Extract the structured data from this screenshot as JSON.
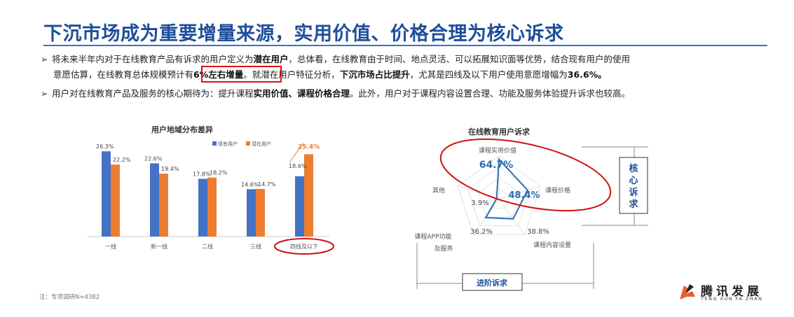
{
  "title": "下沉市场成为重要增量来源，实用价值、价格合理为核心诉求",
  "para1": {
    "arrow": "➢",
    "a1": "将未来半年内对于在线教育产品有诉求的用户定义为",
    "b1": "潜在用户",
    "a2": "，总体看，在线教育由于时间、地点灵活、可以拓展知识面等优势，结合现有用户的使用",
    "a3": "意愿估算，在线教育总体规模预计有",
    "b2": "6%左右增量",
    "a4": "。就潜在用户特征分析，",
    "b3": "下沉市场占比提升",
    "a5": "，尤其是四线及以下用户使用意愿增幅为",
    "b4": "36.6%。"
  },
  "para2": {
    "arrow": "➢",
    "a1": "用户对在线教育产品及服务的核心期待为：提升课程",
    "b1": "实用价值、课程价格合理",
    "a2": "。此外，用户对于课程内容设置合理、功能及服务体验提升诉求也较高。"
  },
  "chart_data": [
    {
      "type": "bar",
      "title": "用户地域分布差异",
      "categories": [
        "一线",
        "新一线",
        "二线",
        "三线",
        "四线及以下"
      ],
      "series": [
        {
          "name": "现有用户",
          "values": [
            26.3,
            22.6,
            17.8,
            14.6,
            18.6
          ],
          "labels": [
            "26.3%",
            "22.6%",
            "17.8%",
            "14.6%",
            "18.6%"
          ],
          "color": "#4472c4"
        },
        {
          "name": "潜在用户",
          "values": [
            22.2,
            19.4,
            18.2,
            14.7,
            25.4
          ],
          "labels": [
            "22.2%",
            "19.4%",
            "18.2%",
            "14.7%",
            "25.4%"
          ],
          "color": "#ed7d31"
        }
      ],
      "ylim": [
        0,
        27
      ],
      "legend": "top-right",
      "highlight_color": "#ed7d31"
    },
    {
      "type": "radar",
      "title": "在线教育用户诉求",
      "axes": [
        "课程实用价值",
        "课程价格",
        "课程内容设置",
        "课程APP功能及服务",
        "其他"
      ],
      "values": [
        64.7,
        48.4,
        38.8,
        36.2,
        3.9
      ],
      "labels": [
        "64.7%",
        "48.4%",
        "38.8%",
        "36.2%",
        "3.9%"
      ],
      "rmax": 70,
      "series_color": "#2e6db4",
      "group_right_label": "核心诉求",
      "group_bottom_label": "进阶诉求"
    }
  ],
  "note": "注：专项调研N=4382",
  "logo": {
    "name_cn": "腾讯发展",
    "name_en": "TENG XUN FA ZHAN",
    "mark_color": "#e8602c"
  },
  "accent_color": "#1f4e9b",
  "highlight_color": "#d11111"
}
